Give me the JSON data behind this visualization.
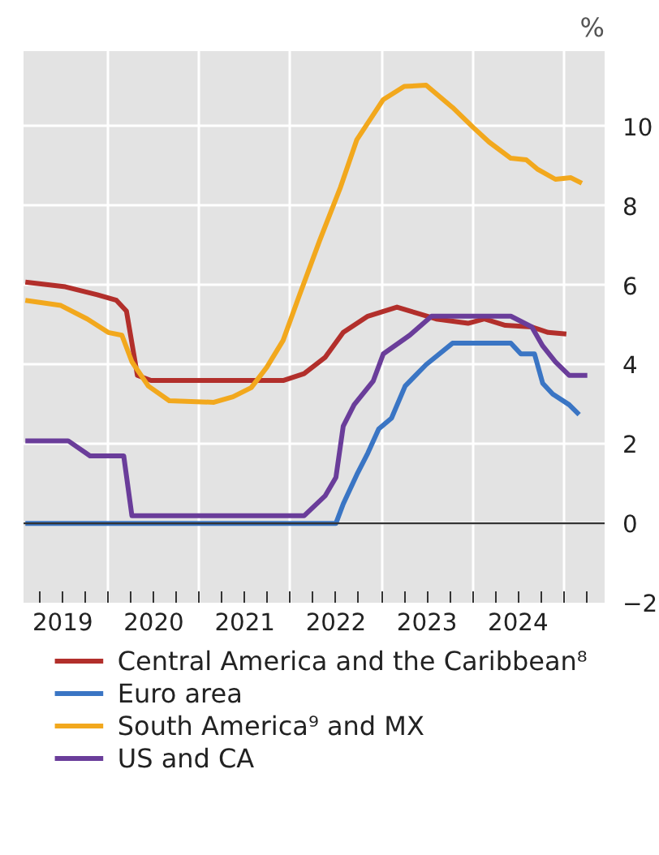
{
  "chart_data": {
    "type": "line",
    "ylabel": "%",
    "xlim": [
      2019.07,
      2025.45
    ],
    "ylim": [
      -2,
      11.9
    ],
    "xticks": [
      {
        "value": 2019.25,
        "label": null
      },
      {
        "value": 2019.5,
        "label": "2019"
      },
      {
        "value": 2019.75,
        "label": null
      },
      {
        "value": 2020,
        "label": null
      },
      {
        "value": 2020.25,
        "label": null
      },
      {
        "value": 2020.5,
        "label": "2020"
      },
      {
        "value": 2020.75,
        "label": null
      },
      {
        "value": 2021,
        "label": null
      },
      {
        "value": 2021.25,
        "label": null
      },
      {
        "value": 2021.5,
        "label": "2021"
      },
      {
        "value": 2021.75,
        "label": null
      },
      {
        "value": 2022,
        "label": null
      },
      {
        "value": 2022.25,
        "label": null
      },
      {
        "value": 2022.5,
        "label": "2022"
      },
      {
        "value": 2022.75,
        "label": null
      },
      {
        "value": 2023,
        "label": null
      },
      {
        "value": 2023.25,
        "label": null
      },
      {
        "value": 2023.5,
        "label": "2023"
      },
      {
        "value": 2023.75,
        "label": null
      },
      {
        "value": 2024,
        "label": null
      },
      {
        "value": 2024.25,
        "label": null
      },
      {
        "value": 2024.5,
        "label": "2024"
      },
      {
        "value": 2024.75,
        "label": null
      },
      {
        "value": 2025,
        "label": null
      },
      {
        "value": 2025.25,
        "label": null
      }
    ],
    "yticks": [
      -2,
      0,
      2,
      4,
      6,
      8,
      10
    ],
    "grid": true,
    "legend": "bottom",
    "line_style": "solid",
    "ref_lines": [
      {
        "axis": "y",
        "value": 0,
        "color": "#333333"
      }
    ],
    "series": [
      {
        "name": "Central America and the Caribbean⁸",
        "color": "#b22f2b",
        "x": [
          2019.09,
          2019.53,
          2019.88,
          2020.09,
          2020.2,
          2020.32,
          2020.47,
          2021.92,
          2022.15,
          2022.38,
          2022.58,
          2022.85,
          2023.17,
          2023.37,
          2023.6,
          2023.95,
          2024.13,
          2024.36,
          2024.65,
          2024.83,
          2025.03
        ],
        "values": [
          6.08,
          5.96,
          5.76,
          5.62,
          5.35,
          3.73,
          3.6,
          3.6,
          3.77,
          4.18,
          4.81,
          5.22,
          5.45,
          5.31,
          5.15,
          5.04,
          5.15,
          4.99,
          4.95,
          4.81,
          4.77
        ]
      },
      {
        "name": "Euro area",
        "color": "#3a75c4",
        "x": [
          2019.09,
          2022.5,
          2022.58,
          2022.73,
          2022.85,
          2022.97,
          2023.11,
          2023.26,
          2023.49,
          2023.78,
          2024.42,
          2024.53,
          2024.68,
          2024.77,
          2024.88,
          2025.06,
          2025.17
        ],
        "values": [
          0,
          0,
          0.49,
          1.23,
          1.77,
          2.38,
          2.65,
          3.46,
          4.0,
          4.54,
          4.54,
          4.27,
          4.27,
          3.53,
          3.26,
          2.99,
          2.74
        ]
      },
      {
        "name": "South America⁹ and MX",
        "color": "#f2a81d",
        "x": [
          2019.09,
          2019.48,
          2019.77,
          2020.0,
          2020.15,
          2020.26,
          2020.44,
          2020.67,
          2021.16,
          2021.37,
          2021.57,
          2021.74,
          2021.92,
          2022.09,
          2022.32,
          2022.55,
          2022.73,
          2023.02,
          2023.25,
          2023.49,
          2023.78,
          2024.01,
          2024.18,
          2024.42,
          2024.59,
          2024.71,
          2024.91,
          2025.08,
          2025.2
        ],
        "values": [
          5.62,
          5.49,
          5.15,
          4.81,
          4.74,
          4.07,
          3.46,
          3.09,
          3.05,
          3.19,
          3.42,
          3.93,
          4.61,
          5.69,
          7.12,
          8.47,
          9.67,
          10.68,
          11.01,
          11.04,
          10.48,
          9.97,
          9.61,
          9.2,
          9.16,
          8.93,
          8.67,
          8.71,
          8.57
        ]
      },
      {
        "name": "US and CA",
        "color": "#6a3d9a",
        "x": [
          2019.09,
          2019.56,
          2019.8,
          2020.17,
          2020.26,
          2022.15,
          2022.38,
          2022.5,
          2022.58,
          2022.7,
          2022.91,
          2023.02,
          2023.31,
          2023.55,
          2024.42,
          2024.65,
          2024.77,
          2024.91,
          2025.06,
          2025.26
        ],
        "values": [
          2.08,
          2.08,
          1.7,
          1.7,
          0.19,
          0.19,
          0.69,
          1.16,
          2.45,
          2.99,
          3.59,
          4.27,
          4.74,
          5.22,
          5.22,
          4.95,
          4.47,
          4.07,
          3.73,
          3.73
        ]
      }
    ]
  }
}
